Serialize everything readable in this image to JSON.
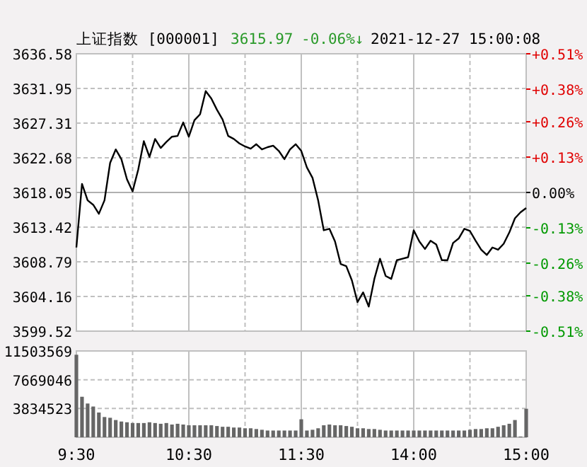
{
  "chart_data": [
    {
      "type": "line",
      "title": "上证指数 [000001]",
      "annotations": [
        "3615.97",
        "-0.06%↓",
        "2021-12-27 15:00:08"
      ],
      "categories": [
        null,
        null,
        null,
        null,
        null,
        null,
        null,
        null,
        null,
        null,
        null,
        null,
        null,
        null,
        null,
        null,
        null,
        null,
        null,
        null,
        null,
        null,
        null,
        null,
        null,
        null,
        null,
        null,
        null,
        null,
        null,
        null,
        null,
        null,
        null,
        null,
        null,
        null,
        null,
        null,
        null,
        null,
        null,
        null,
        null,
        null,
        null,
        null,
        null,
        null,
        null,
        null,
        null,
        null,
        null,
        null,
        null,
        null,
        null,
        null,
        null,
        null,
        null,
        null,
        null,
        null,
        null,
        null,
        null,
        null,
        null,
        null,
        null,
        null,
        null,
        null,
        null,
        null,
        null,
        null,
        null
      ],
      "ylim": [
        3599.52,
        3636.58
      ],
      "yticks": [
        3599.52,
        3604.16,
        3608.79,
        3613.42,
        3618.05,
        3622.68,
        3627.31,
        3631.95,
        3636.58
      ],
      "y2lim": [
        -0.51,
        0.51
      ],
      "y2ticks": [
        {
          "value": -0.51,
          "label": "-0.51%"
        },
        {
          "value": -0.38,
          "label": "-0.38%"
        },
        {
          "value": -0.26,
          "label": "-0.26%"
        },
        {
          "value": -0.13,
          "label": "-0.13%"
        },
        {
          "value": 0,
          "label": "0.00%"
        },
        {
          "value": 0.13,
          "label": "+0.13%"
        },
        {
          "value": 0.26,
          "label": "+0.26%"
        },
        {
          "value": 0.38,
          "label": "+0.38%"
        },
        {
          "value": 0.51,
          "label": "+0.51%"
        }
      ],
      "tick_labels": "y",
      "grid": true,
      "line_style": "solid",
      "ref_lines": [
        {
          "axis": "y",
          "value": 3618.05,
          "color": "#b0b0b0",
          "line_style": "solid"
        }
      ],
      "series": [
        {
          "color": "#000000",
          "values": [
            3610.7,
            3619.2,
            3617.0,
            3616.4,
            3615.2,
            3617.0,
            3622.0,
            3623.8,
            3622.5,
            3619.8,
            3618.2,
            3621.1,
            3624.9,
            3622.8,
            3625.2,
            3624.0,
            3624.8,
            3625.5,
            3625.6,
            3627.4,
            3625.5,
            3627.7,
            3628.5,
            3631.6,
            3630.6,
            3629.1,
            3627.8,
            3625.6,
            3625.2,
            3624.6,
            3624.2,
            3623.9,
            3624.5,
            3623.8,
            3624.1,
            3624.3,
            3623.6,
            3622.5,
            3623.8,
            3624.5,
            3623.6,
            3621.4,
            3620.0,
            3617.0,
            3613.0,
            3613.2,
            3611.5,
            3608.5,
            3608.2,
            3606.3,
            3603.4,
            3604.7,
            3602.8,
            3606.5,
            3609.2,
            3606.9,
            3606.5,
            3609.0,
            3609.2,
            3609.4,
            3613.0,
            3611.5,
            3610.5,
            3611.6,
            3611.1,
            3609.0,
            3609.0,
            3611.3,
            3611.9,
            3613.2,
            3612.9,
            3611.6,
            3610.4,
            3609.7,
            3610.7,
            3610.4,
            3611.2,
            3612.7,
            3614.6,
            3615.4,
            3615.97
          ]
        }
      ]
    },
    {
      "type": "bar",
      "categories": [
        "9:30",
        null,
        null,
        null,
        null,
        null,
        null,
        null,
        null,
        null,
        null,
        null,
        null,
        null,
        null,
        null,
        null,
        null,
        null,
        null,
        "10:30",
        null,
        null,
        null,
        null,
        null,
        null,
        null,
        null,
        null,
        null,
        null,
        null,
        null,
        null,
        null,
        null,
        null,
        null,
        null,
        "11:30",
        null,
        null,
        null,
        null,
        null,
        null,
        null,
        null,
        null,
        null,
        null,
        null,
        null,
        null,
        null,
        null,
        null,
        null,
        null,
        "14:00",
        null,
        null,
        null,
        null,
        null,
        null,
        null,
        null,
        null,
        null,
        null,
        null,
        null,
        null,
        null,
        null,
        null,
        null,
        null,
        "15:00"
      ],
      "ylim": [
        0,
        11503569
      ],
      "yticks": [
        3834523,
        7669046,
        11503569
      ],
      "grid": true,
      "series": [
        {
          "color": "#666666",
          "values": [
            11000000,
            5400000,
            4500000,
            4100000,
            3300000,
            2700000,
            2600000,
            2300000,
            2100000,
            2000000,
            1900000,
            1900000,
            1900000,
            2000000,
            1900000,
            1800000,
            1900000,
            1700000,
            1800000,
            1700000,
            1600000,
            1600000,
            1600000,
            1600000,
            1600000,
            1500000,
            1400000,
            1400000,
            1300000,
            1300000,
            1200000,
            1200000,
            1100000,
            1000000,
            900000,
            900000,
            900000,
            900000,
            900000,
            900000,
            2400000,
            900000,
            1000000,
            1200000,
            1600000,
            1700000,
            1600000,
            1600000,
            1500000,
            1400000,
            1200000,
            1200000,
            1100000,
            1100000,
            1000000,
            900000,
            900000,
            900000,
            900000,
            900000,
            900000,
            900000,
            900000,
            900000,
            900000,
            900000,
            900000,
            900000,
            900000,
            900000,
            1000000,
            1100000,
            1100000,
            1200000,
            1200000,
            1400000,
            1600000,
            1800000,
            2300000,
            100000,
            3800000
          ]
        }
      ]
    }
  ]
}
